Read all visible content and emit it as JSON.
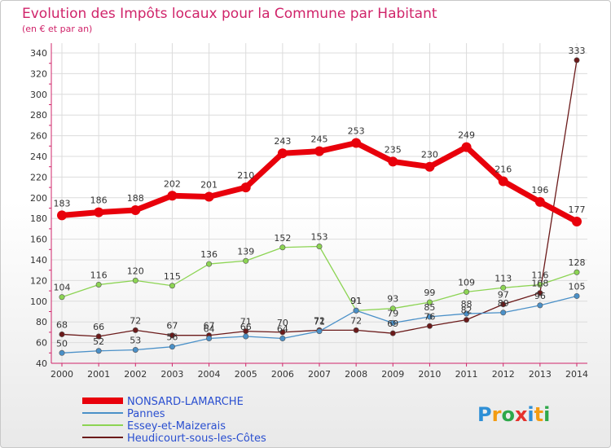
{
  "chart_data": {
    "type": "line",
    "title": "Evolution des Impôts locaux pour la Commune par Habitant",
    "subtitle": "(en € et par an)",
    "xlabel": "",
    "ylabel": "",
    "x": [
      "2000",
      "2001",
      "2002",
      "2003",
      "2004",
      "2005",
      "2006",
      "2007",
      "2008",
      "2009",
      "2010",
      "2011",
      "2012",
      "2013",
      "2014"
    ],
    "ylim": [
      40,
      340
    ],
    "yticks": [
      40,
      60,
      80,
      100,
      120,
      140,
      160,
      180,
      200,
      220,
      240,
      260,
      280,
      300,
      320,
      340
    ],
    "legend_position": "bottom-left",
    "series": [
      {
        "name": "NONSARD-LAMARCHE",
        "color": "#e8000b",
        "values": [
          183,
          186,
          188,
          202,
          201,
          210,
          243,
          245,
          253,
          235,
          230,
          249,
          216,
          196,
          177
        ]
      },
      {
        "name": "Pannes",
        "color": "#4a90c8",
        "values": [
          50,
          52,
          53,
          56,
          64,
          66,
          64,
          71,
          91,
          79,
          85,
          88,
          89,
          96,
          105
        ]
      },
      {
        "name": "Essey-et-Maizerais",
        "color": "#8cd453",
        "values": [
          104,
          116,
          120,
          115,
          136,
          139,
          152,
          153,
          91,
          93,
          99,
          109,
          113,
          116,
          128
        ]
      },
      {
        "name": "Heudicourt-sous-les-Côtes",
        "color": "#6b1a1a",
        "values": [
          68,
          66,
          72,
          67,
          67,
          71,
          70,
          72,
          72,
          69,
          76,
          82,
          97,
          108,
          333
        ]
      }
    ]
  },
  "brand": {
    "logo_text": "Proxiti"
  }
}
